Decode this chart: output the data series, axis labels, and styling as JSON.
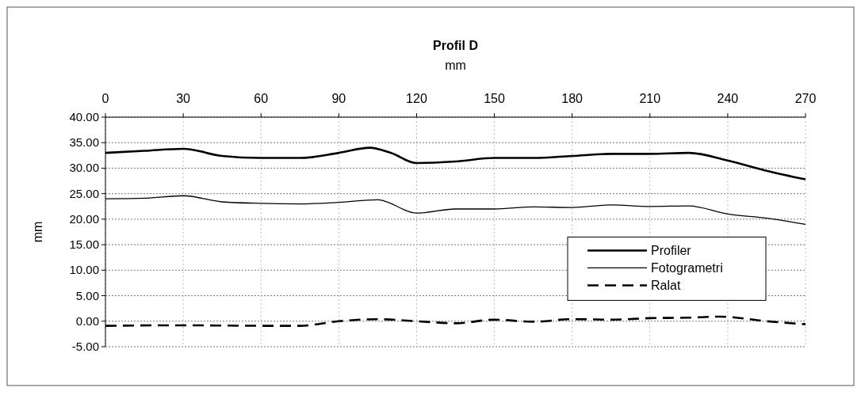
{
  "chart_data": {
    "type": "line",
    "title": "Profil D",
    "xlabel": "mm",
    "ylabel": "mm",
    "xlim": [
      0,
      270
    ],
    "xticks": [
      0,
      30,
      60,
      90,
      120,
      150,
      180,
      210,
      240,
      270
    ],
    "ylim": [
      -5,
      40
    ],
    "yticks": [
      {
        "value": -5,
        "label": "-5.00"
      },
      {
        "value": 0,
        "label": "0.00"
      },
      {
        "value": 5,
        "label": "5.00"
      },
      {
        "value": 10,
        "label": "10.00"
      },
      {
        "value": 15,
        "label": "15.00"
      },
      {
        "value": 20,
        "label": "20.00"
      },
      {
        "value": 25,
        "label": "25.00"
      },
      {
        "value": 30,
        "label": "30.00"
      },
      {
        "value": 35,
        "label": "35.00"
      },
      {
        "value": 40,
        "label": "40.00"
      }
    ],
    "grid": true,
    "legend": "right",
    "series": [
      {
        "name": "Profiler",
        "color": "#000000",
        "line_style": "solid",
        "x": [
          0,
          15,
          30,
          45,
          60,
          75,
          90,
          102,
          110,
          120,
          135,
          150,
          165,
          180,
          195,
          210,
          225,
          240,
          255,
          270
        ],
        "values": [
          33.0,
          33.4,
          33.8,
          32.4,
          32.0,
          32.0,
          33.0,
          34.0,
          33.0,
          31.0,
          31.3,
          32.0,
          32.0,
          32.4,
          32.8,
          32.8,
          33.0,
          31.5,
          29.5,
          27.8
        ]
      },
      {
        "name": "Fotogrametri",
        "color": "#000000",
        "line_style": "solid",
        "x": [
          0,
          15,
          30,
          45,
          60,
          75,
          90,
          105,
          120,
          135,
          150,
          165,
          180,
          195,
          210,
          225,
          240,
          255,
          270
        ],
        "values": [
          24.0,
          24.1,
          24.6,
          23.4,
          23.1,
          23.0,
          23.3,
          23.8,
          21.2,
          22.0,
          22.0,
          22.4,
          22.3,
          22.8,
          22.5,
          22.6,
          21.0,
          20.2,
          19.0
        ]
      },
      {
        "name": "Ralat",
        "color": "#000000",
        "line_style": "dashed",
        "x": [
          0,
          30,
          60,
          75,
          90,
          105,
          120,
          135,
          150,
          165,
          180,
          195,
          210,
          225,
          237,
          255,
          270
        ],
        "values": [
          -0.9,
          -0.8,
          -0.9,
          -0.9,
          0.0,
          0.4,
          0.0,
          -0.4,
          0.3,
          -0.1,
          0.4,
          0.3,
          0.6,
          0.7,
          0.9,
          0.0,
          -0.6
        ]
      }
    ]
  }
}
